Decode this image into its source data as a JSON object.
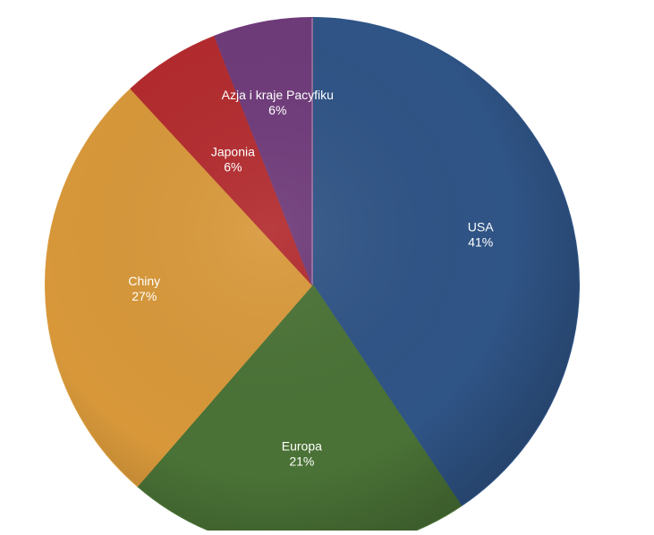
{
  "chart_data": {
    "type": "pie",
    "title": "",
    "slices": [
      {
        "label": "USA",
        "value": 41,
        "value_label": "41%",
        "color": "#2f5486"
      },
      {
        "label": "Europa",
        "value": 21,
        "value_label": "21%",
        "color": "#4a7236"
      },
      {
        "label": "Chiny",
        "value": 27,
        "value_label": "27%",
        "color": "#d8983a"
      },
      {
        "label": "Japonia",
        "value": 6,
        "value_label": "6%",
        "color": "#b32b2e"
      },
      {
        "label": "Azja i kraje Pacyfiku",
        "value": 6,
        "value_label": "6%",
        "color": "#6f3b7a"
      }
    ],
    "legend": "none",
    "start": "top, clockwise",
    "style": "3d-shaded"
  }
}
